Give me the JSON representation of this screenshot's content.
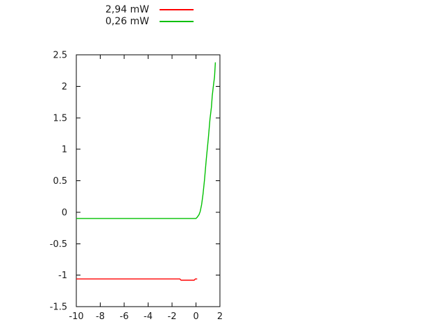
{
  "background": "#ffffff",
  "chart_data": {
    "type": "line",
    "title": "",
    "xlabel": "",
    "ylabel": "",
    "xlim": [
      -10,
      2
    ],
    "ylim": [
      -1.5,
      2.5
    ],
    "grid": false,
    "legend_position": "above-plot-top-center",
    "x_tick_labels": [
      "-10",
      "-8",
      "-6",
      "-4",
      "-2",
      "0",
      "2"
    ],
    "x_ticks": [
      -10,
      -8,
      -6,
      -4,
      -2,
      0,
      2
    ],
    "y_tick_labels": [
      "2.5",
      "2",
      "1.5",
      "1",
      "0.5",
      "0",
      "-0.5",
      "-1",
      "-1.5"
    ],
    "y_ticks": [
      2.5,
      2,
      1.5,
      1,
      0.5,
      0,
      -0.5,
      -1,
      -1.5
    ],
    "axis_color": "#000000",
    "series": [
      {
        "name": "2,94 mW",
        "color": "#ff0000",
        "points": [
          [
            -10,
            -1.06
          ],
          [
            -8,
            -1.06
          ],
          [
            -6,
            -1.06
          ],
          [
            -4,
            -1.06
          ],
          [
            -2,
            -1.06
          ],
          [
            -1.35,
            -1.06
          ],
          [
            -1.25,
            -1.08
          ],
          [
            -0.6,
            -1.08
          ],
          [
            -0.15,
            -1.08
          ],
          [
            -0.05,
            -1.06
          ],
          [
            0.1,
            -1.06
          ]
        ]
      },
      {
        "name": "0,26 mW",
        "color": "#00c000",
        "points": [
          [
            -10,
            -0.1
          ],
          [
            -8,
            -0.1
          ],
          [
            -6,
            -0.1
          ],
          [
            -4,
            -0.1
          ],
          [
            -2,
            -0.1
          ],
          [
            -1,
            -0.1
          ],
          [
            0,
            -0.1
          ],
          [
            0.1,
            -0.08
          ],
          [
            0.25,
            -0.04
          ],
          [
            0.35,
            0.01
          ],
          [
            0.47,
            0.12
          ],
          [
            0.59,
            0.29
          ],
          [
            0.71,
            0.51
          ],
          [
            0.86,
            0.84
          ],
          [
            1.03,
            1.17
          ],
          [
            1.17,
            1.48
          ],
          [
            1.29,
            1.67
          ],
          [
            1.36,
            1.85
          ],
          [
            1.45,
            2.0
          ],
          [
            1.55,
            2.15
          ],
          [
            1.62,
            2.38
          ]
        ]
      }
    ]
  }
}
